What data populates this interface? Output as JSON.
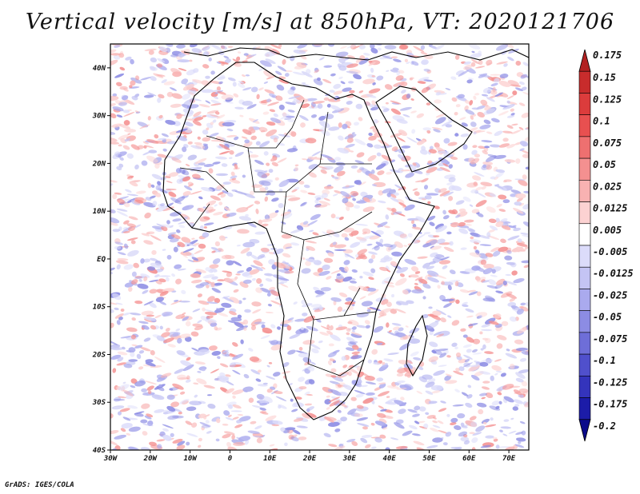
{
  "title": "Vertical velocity [m/s] at 850hPa, VT: 2020121706",
  "credit": "GrADS: IGES/COLA",
  "map": {
    "lon_range": [
      -30,
      75
    ],
    "lat_range": [
      -40,
      45
    ],
    "x_ticks": [
      {
        "value": -30,
        "label": "30W"
      },
      {
        "value": -20,
        "label": "20W"
      },
      {
        "value": -10,
        "label": "10W"
      },
      {
        "value": 0,
        "label": "0"
      },
      {
        "value": 10,
        "label": "10E"
      },
      {
        "value": 20,
        "label": "20E"
      },
      {
        "value": 30,
        "label": "30E"
      },
      {
        "value": 40,
        "label": "40E"
      },
      {
        "value": 50,
        "label": "50E"
      },
      {
        "value": 60,
        "label": "60E"
      },
      {
        "value": 70,
        "label": "70E"
      }
    ],
    "y_ticks": [
      {
        "value": 40,
        "label": "40N"
      },
      {
        "value": 30,
        "label": "30N"
      },
      {
        "value": 20,
        "label": "20N"
      },
      {
        "value": 10,
        "label": "10N"
      },
      {
        "value": 0,
        "label": "EQ"
      },
      {
        "value": -10,
        "label": "10S"
      },
      {
        "value": -20,
        "label": "20S"
      },
      {
        "value": -30,
        "label": "30S"
      },
      {
        "value": -40,
        "label": "40S"
      }
    ]
  },
  "colorbar": {
    "levels": [
      "0.175",
      "0.15",
      "0.125",
      "0.1",
      "0.075",
      "0.05",
      "0.025",
      "0.0125",
      "0.005",
      "-0.005",
      "-0.0125",
      "-0.025",
      "-0.05",
      "-0.075",
      "-0.1",
      "-0.125",
      "-0.175",
      "-0.2"
    ],
    "colors": [
      "#b22222",
      "#c82c2c",
      "#dc3c3c",
      "#e85050",
      "#ee7070",
      "#f49090",
      "#f8b2b2",
      "#fcd2d2",
      "#ffffff",
      "#dcdcfa",
      "#c4c4f4",
      "#aaaaee",
      "#8c8ce4",
      "#6e6ed8",
      "#5050cc",
      "#3434bc",
      "#1c1ca8",
      "#0a0a8a"
    ]
  }
}
